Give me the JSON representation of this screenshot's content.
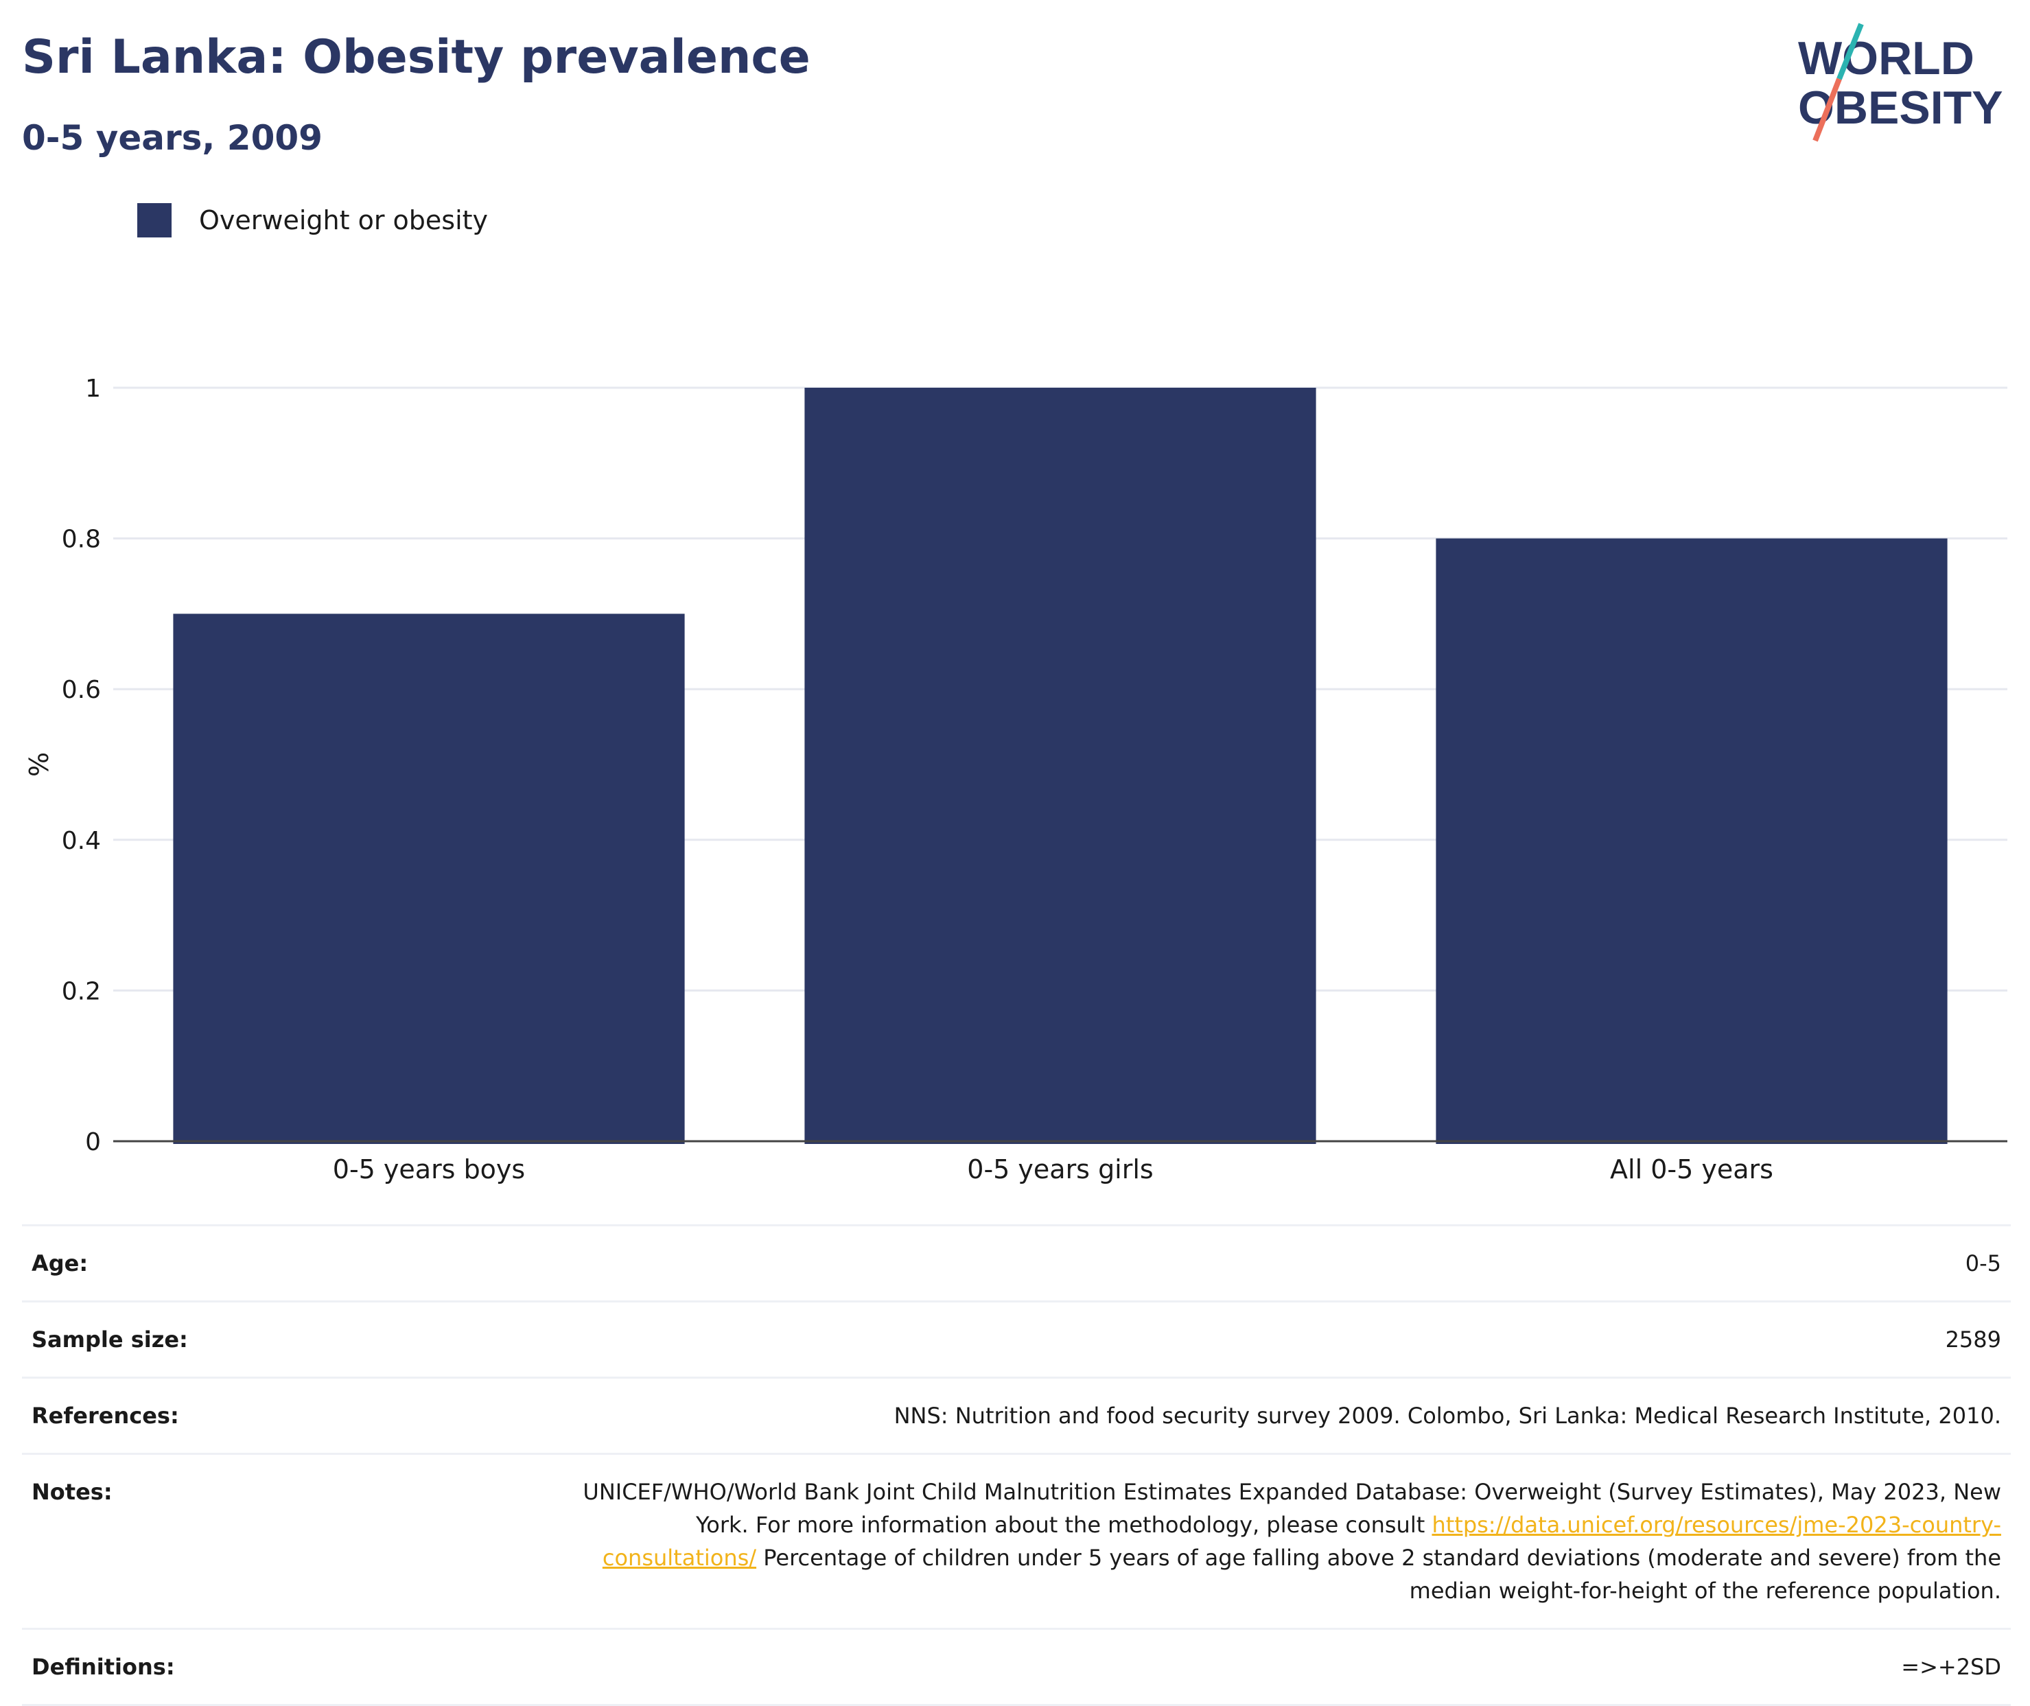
{
  "header": {
    "title": "Sri Lanka: Obesity prevalence",
    "subtitle": "0-5 years, 2009"
  },
  "logo": {
    "line1": "WORLD",
    "line2": "OBESITY"
  },
  "colors": {
    "bar": "#2b3764",
    "title": "#2b3764",
    "link": "#f2b31a",
    "grid": "#e6e8ef"
  },
  "chart_data": {
    "type": "bar",
    "categories": [
      "0-5 years boys",
      "0-5 years girls",
      "All 0-5 years"
    ],
    "series": [
      {
        "name": "Overweight or obesity",
        "values": [
          0.7,
          1.0,
          0.8
        ]
      }
    ],
    "ylabel": "%",
    "ylim": [
      0,
      1
    ],
    "yticks": [
      "0",
      "0.2",
      "0.4",
      "0.6",
      "0.8",
      "1"
    ],
    "grid": true,
    "legend_position": "top-left"
  },
  "info": {
    "age_label": "Age:",
    "age_value": "0-5",
    "sample_label": "Sample size:",
    "sample_value": "2589",
    "references_label": "References:",
    "references_value": "NNS: Nutrition and food security survey 2009. Colombo, Sri Lanka: Medical Research Institute, 2010.",
    "notes_label": "Notes:",
    "notes_text_1": "UNICEF/WHO/World Bank Joint Child Malnutrition Estimates Expanded Database: Overweight (Survey Estimates), May 2023, New York. For more information about the methodology, please consult ",
    "notes_link": "https://data.unicef.org/resources/jme-2023-country-consultations/",
    "notes_text_2": " Percentage of children under 5 years of age falling above 2 standard deviations (moderate and severe) from the median weight-for-height of the reference population.",
    "definitions_label": "Definitions:",
    "definitions_value": "=>+2SD"
  }
}
